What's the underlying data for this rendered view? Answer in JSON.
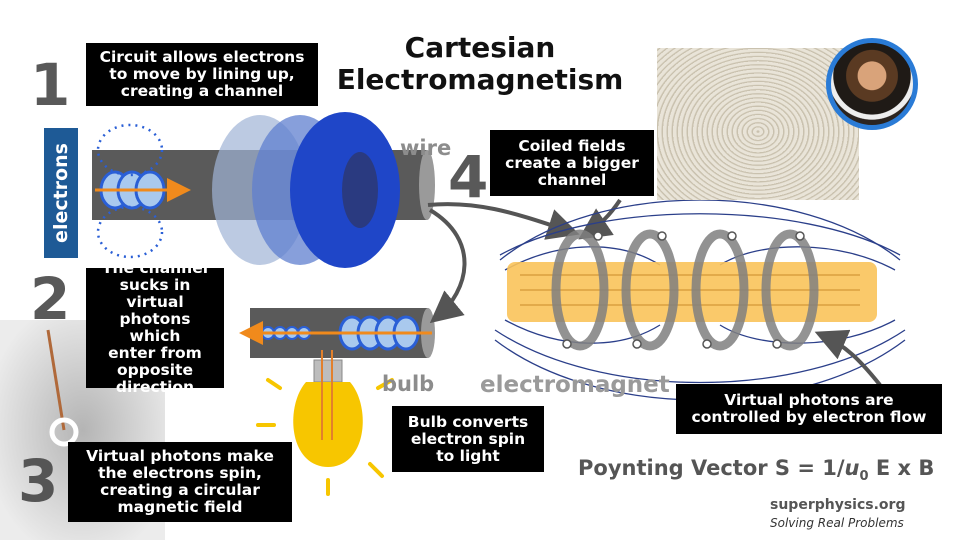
{
  "title": {
    "line1": "Cartesian",
    "line2": "Electromagnetism"
  },
  "steps": {
    "one": "1",
    "two": "2",
    "three": "3",
    "four": "4"
  },
  "labels": {
    "electrons": "electrons",
    "wire": "wire",
    "bulb": "bulb",
    "electromagnet": "electromagnet"
  },
  "callouts": {
    "circuit": [
      "Circuit allows electrons",
      "to move by lining up,",
      "creating a channel"
    ],
    "channel": [
      "The channel",
      "sucks in virtual",
      "photons which",
      "enter from",
      "opposite",
      "direction"
    ],
    "spin": [
      "Virtual photons make",
      "the electrons spin,",
      "creating a circular",
      "magnetic field"
    ],
    "bulb_converts": [
      "Bulb converts",
      "electron spin",
      "to light"
    ],
    "coiled": [
      "Coiled fields",
      "create a bigger",
      "channel"
    ],
    "virtual_controlled": [
      "Virtual photons are",
      "controlled by electron flow"
    ]
  },
  "formula": {
    "prefix": "Poynting Vector S = 1/",
    "u": "u",
    "sub": "0",
    "suffix": " E x B"
  },
  "footer": {
    "site": "superphysics.org",
    "tagline": "Solving Real Problems"
  },
  "colors": {
    "accent_blue": "#2a5fd6",
    "dark_blue": "#1e5a96",
    "orange": "#f08a1c",
    "bulb": "#f7c600",
    "magnet": "#f9c35a"
  }
}
